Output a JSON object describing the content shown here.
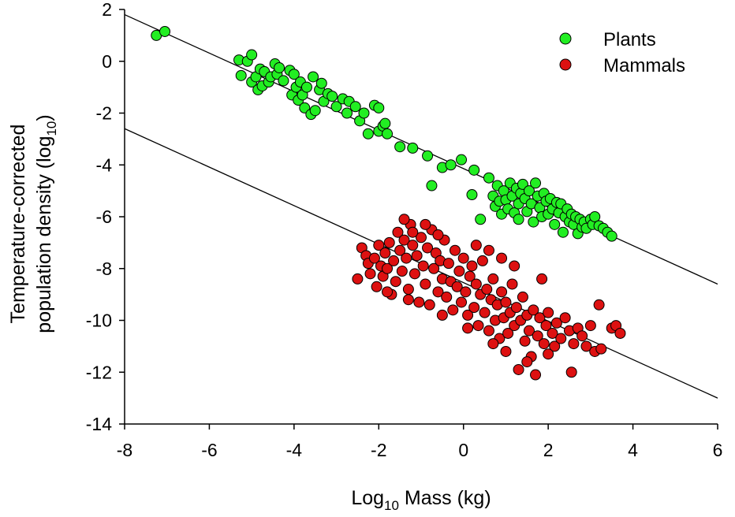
{
  "chart_data": {
    "type": "scatter",
    "title": "",
    "xlabel": {
      "base": "Log",
      "sub": "10",
      "rest": " Mass (kg)"
    },
    "ylabel": {
      "line1": "Temperature-corrected",
      "line2_base": "population density (log",
      "line2_sub": "10",
      "line2_end": ")"
    },
    "xlim": [
      -8,
      6
    ],
    "ylim": [
      -14,
      2
    ],
    "x_ticks": [
      "-8",
      "-6",
      "-4",
      "-2",
      "0",
      "2",
      "4",
      "6"
    ],
    "y_ticks": [
      "2",
      "0",
      "-2",
      "-4",
      "-6",
      "-8",
      "-10",
      "-12",
      "-14"
    ],
    "grid": false,
    "legend_position": "top-right",
    "colors": {
      "plants": "#22ee22",
      "mammals": "#dd1111",
      "marker_edge": "#000000",
      "line": "#000000"
    },
    "series": [
      {
        "name": "Plants",
        "color": "#22ee22",
        "points": [
          [
            -7.25,
            1.0
          ],
          [
            -7.05,
            1.15
          ],
          [
            -5.3,
            0.05
          ],
          [
            -5.25,
            -0.55
          ],
          [
            -5.1,
            0.0
          ],
          [
            -5.0,
            0.25
          ],
          [
            -5.0,
            -0.8
          ],
          [
            -4.9,
            -0.6
          ],
          [
            -4.85,
            -1.1
          ],
          [
            -4.8,
            -0.3
          ],
          [
            -4.75,
            -0.95
          ],
          [
            -4.7,
            -0.4
          ],
          [
            -4.6,
            -0.8
          ],
          [
            -4.55,
            -0.6
          ],
          [
            -4.45,
            -0.1
          ],
          [
            -4.4,
            -0.5
          ],
          [
            -4.35,
            -0.25
          ],
          [
            -4.25,
            -0.75
          ],
          [
            -4.1,
            -0.35
          ],
          [
            -4.05,
            -1.3
          ],
          [
            -4.0,
            -0.5
          ],
          [
            -3.95,
            -1.0
          ],
          [
            -3.9,
            -1.5
          ],
          [
            -3.85,
            -0.8
          ],
          [
            -3.8,
            -1.3
          ],
          [
            -3.75,
            -1.8
          ],
          [
            -3.7,
            -1.0
          ],
          [
            -3.6,
            -2.05
          ],
          [
            -3.55,
            -0.6
          ],
          [
            -3.5,
            -1.9
          ],
          [
            -3.4,
            -1.1
          ],
          [
            -3.35,
            -0.85
          ],
          [
            -3.3,
            -1.55
          ],
          [
            -3.2,
            -1.25
          ],
          [
            -3.1,
            -1.35
          ],
          [
            -3.0,
            -1.75
          ],
          [
            -2.85,
            -1.45
          ],
          [
            -2.75,
            -2.0
          ],
          [
            -2.7,
            -1.55
          ],
          [
            -2.55,
            -1.75
          ],
          [
            -2.45,
            -2.3
          ],
          [
            -2.35,
            -2.0
          ],
          [
            -2.25,
            -2.8
          ],
          [
            -2.1,
            -1.7
          ],
          [
            -2.0,
            -1.8
          ],
          [
            -2.0,
            -2.7
          ],
          [
            -1.9,
            -2.5
          ],
          [
            -1.85,
            -2.4
          ],
          [
            -1.8,
            -2.8
          ],
          [
            -1.5,
            -3.3
          ],
          [
            -1.2,
            -3.35
          ],
          [
            -0.85,
            -3.65
          ],
          [
            -0.75,
            -4.8
          ],
          [
            -0.5,
            -4.1
          ],
          [
            -0.3,
            -4.0
          ],
          [
            -0.05,
            -3.8
          ],
          [
            0.2,
            -5.15
          ],
          [
            0.25,
            -4.2
          ],
          [
            0.4,
            -6.1
          ],
          [
            0.6,
            -4.5
          ],
          [
            0.7,
            -5.2
          ],
          [
            0.75,
            -5.6
          ],
          [
            0.8,
            -4.8
          ],
          [
            0.85,
            -5.4
          ],
          [
            0.9,
            -5.9
          ],
          [
            0.95,
            -5.0
          ],
          [
            1.0,
            -5.35
          ],
          [
            1.05,
            -5.7
          ],
          [
            1.1,
            -4.7
          ],
          [
            1.15,
            -5.2
          ],
          [
            1.2,
            -5.85
          ],
          [
            1.25,
            -4.9
          ],
          [
            1.3,
            -5.5
          ],
          [
            1.3,
            -6.1
          ],
          [
            1.35,
            -5.1
          ],
          [
            1.4,
            -4.75
          ],
          [
            1.45,
            -5.3
          ],
          [
            1.5,
            -5.8
          ],
          [
            1.55,
            -5.0
          ],
          [
            1.6,
            -5.5
          ],
          [
            1.65,
            -6.2
          ],
          [
            1.7,
            -4.7
          ],
          [
            1.75,
            -5.2
          ],
          [
            1.8,
            -5.65
          ],
          [
            1.85,
            -6.0
          ],
          [
            1.9,
            -5.1
          ],
          [
            1.95,
            -5.4
          ],
          [
            2.0,
            -5.9
          ],
          [
            2.05,
            -5.3
          ],
          [
            2.1,
            -5.7
          ],
          [
            2.15,
            -6.3
          ],
          [
            2.2,
            -5.45
          ],
          [
            2.25,
            -5.85
          ],
          [
            2.3,
            -5.5
          ],
          [
            2.35,
            -6.6
          ],
          [
            2.4,
            -6.0
          ],
          [
            2.45,
            -5.7
          ],
          [
            2.5,
            -6.2
          ],
          [
            2.55,
            -5.9
          ],
          [
            2.6,
            -6.3
          ],
          [
            2.65,
            -6.0
          ],
          [
            2.7,
            -6.65
          ],
          [
            2.75,
            -6.1
          ],
          [
            2.8,
            -6.4
          ],
          [
            2.85,
            -6.2
          ],
          [
            2.9,
            -6.45
          ],
          [
            3.0,
            -6.1
          ],
          [
            3.05,
            -6.3
          ],
          [
            3.1,
            -6.0
          ],
          [
            3.2,
            -6.35
          ],
          [
            3.3,
            -6.45
          ],
          [
            3.4,
            -6.6
          ],
          [
            3.5,
            -6.75
          ]
        ]
      },
      {
        "name": "Mammals",
        "color": "#dd1111",
        "points": [
          [
            -2.5,
            -8.4
          ],
          [
            -2.4,
            -7.2
          ],
          [
            -2.3,
            -7.5
          ],
          [
            -2.25,
            -7.8
          ],
          [
            -2.2,
            -8.2
          ],
          [
            -2.1,
            -7.6
          ],
          [
            -2.05,
            -8.7
          ],
          [
            -2.0,
            -7.1
          ],
          [
            -1.95,
            -7.9
          ],
          [
            -1.9,
            -8.3
          ],
          [
            -1.85,
            -7.4
          ],
          [
            -1.8,
            -8.0
          ],
          [
            -1.75,
            -7.0
          ],
          [
            -1.7,
            -9.0
          ],
          [
            -1.65,
            -7.7
          ],
          [
            -1.6,
            -8.5
          ],
          [
            -1.55,
            -6.6
          ],
          [
            -1.5,
            -7.3
          ],
          [
            -1.45,
            -8.1
          ],
          [
            -1.4,
            -6.9
          ],
          [
            -1.35,
            -7.6
          ],
          [
            -1.3,
            -8.8
          ],
          [
            -1.25,
            -6.3
          ],
          [
            -1.2,
            -7.1
          ],
          [
            -1.15,
            -8.2
          ],
          [
            -1.1,
            -7.5
          ],
          [
            -1.05,
            -9.3
          ],
          [
            -1.0,
            -6.8
          ],
          [
            -0.95,
            -7.9
          ],
          [
            -0.9,
            -8.6
          ],
          [
            -0.85,
            -7.2
          ],
          [
            -0.8,
            -9.4
          ],
          [
            -0.75,
            -6.5
          ],
          [
            -0.7,
            -8.0
          ],
          [
            -0.65,
            -7.4
          ],
          [
            -0.6,
            -8.9
          ],
          [
            -0.55,
            -7.7
          ],
          [
            -0.5,
            -8.4
          ],
          [
            -0.45,
            -6.9
          ],
          [
            -0.4,
            -9.1
          ],
          [
            -0.35,
            -7.8
          ],
          [
            -0.3,
            -8.5
          ],
          [
            -0.25,
            -9.6
          ],
          [
            -0.2,
            -7.3
          ],
          [
            -0.15,
            -8.7
          ],
          [
            -0.1,
            -8.1
          ],
          [
            -0.05,
            -9.3
          ],
          [
            0.0,
            -7.6
          ],
          [
            0.05,
            -8.9
          ],
          [
            0.1,
            -9.8
          ],
          [
            0.15,
            -8.3
          ],
          [
            0.2,
            -7.9
          ],
          [
            0.25,
            -9.5
          ],
          [
            0.3,
            -8.6
          ],
          [
            0.35,
            -10.2
          ],
          [
            0.4,
            -9.0
          ],
          [
            0.45,
            -7.7
          ],
          [
            0.5,
            -9.7
          ],
          [
            0.55,
            -8.8
          ],
          [
            0.6,
            -10.4
          ],
          [
            0.65,
            -9.2
          ],
          [
            0.7,
            -8.4
          ],
          [
            0.75,
            -10.0
          ],
          [
            0.8,
            -9.4
          ],
          [
            0.85,
            -10.7
          ],
          [
            0.9,
            -8.9
          ],
          [
            0.95,
            -9.9
          ],
          [
            1.0,
            -9.3
          ],
          [
            1.05,
            -10.5
          ],
          [
            1.1,
            -9.7
          ],
          [
            1.15,
            -8.6
          ],
          [
            1.2,
            -10.2
          ],
          [
            1.25,
            -9.5
          ],
          [
            1.3,
            -11.9
          ],
          [
            1.35,
            -10.0
          ],
          [
            1.4,
            -9.1
          ],
          [
            1.45,
            -10.8
          ],
          [
            1.5,
            -9.8
          ],
          [
            1.55,
            -10.4
          ],
          [
            1.6,
            -11.4
          ],
          [
            1.65,
            -9.6
          ],
          [
            1.7,
            -12.1
          ],
          [
            1.75,
            -10.6
          ],
          [
            1.8,
            -9.9
          ],
          [
            1.85,
            -8.4
          ],
          [
            1.9,
            -10.9
          ],
          [
            1.95,
            -10.2
          ],
          [
            2.0,
            -9.7
          ],
          [
            2.1,
            -10.5
          ],
          [
            2.15,
            -11.0
          ],
          [
            2.2,
            -10.1
          ],
          [
            2.3,
            -10.7
          ],
          [
            2.4,
            -9.9
          ],
          [
            2.5,
            -10.4
          ],
          [
            2.55,
            -12.0
          ],
          [
            2.6,
            -10.9
          ],
          [
            2.7,
            -10.3
          ],
          [
            2.8,
            -10.6
          ],
          [
            2.9,
            -11.0
          ],
          [
            3.0,
            -10.2
          ],
          [
            3.1,
            -11.2
          ],
          [
            3.2,
            -9.4
          ],
          [
            3.25,
            -11.1
          ],
          [
            3.5,
            -10.3
          ],
          [
            3.6,
            -10.2
          ],
          [
            3.7,
            -10.5
          ],
          [
            -1.4,
            -6.1
          ],
          [
            -1.2,
            -6.6
          ],
          [
            -0.9,
            -6.3
          ],
          [
            -0.6,
            -6.7
          ],
          [
            0.3,
            -7.1
          ],
          [
            0.6,
            -7.3
          ],
          [
            0.9,
            -7.6
          ],
          [
            1.2,
            -7.9
          ],
          [
            -1.8,
            -8.9
          ],
          [
            -1.3,
            -9.2
          ],
          [
            -0.5,
            -9.8
          ],
          [
            0.1,
            -10.3
          ],
          [
            0.7,
            -10.9
          ],
          [
            1.0,
            -11.2
          ],
          [
            1.5,
            -11.6
          ],
          [
            2.0,
            -11.3
          ]
        ]
      }
    ],
    "fit_lines": [
      {
        "x": [
          -8,
          6
        ],
        "y": [
          1.8,
          -8.6
        ]
      },
      {
        "x": [
          -8,
          6
        ],
        "y": [
          -2.6,
          -13.0
        ]
      }
    ]
  }
}
